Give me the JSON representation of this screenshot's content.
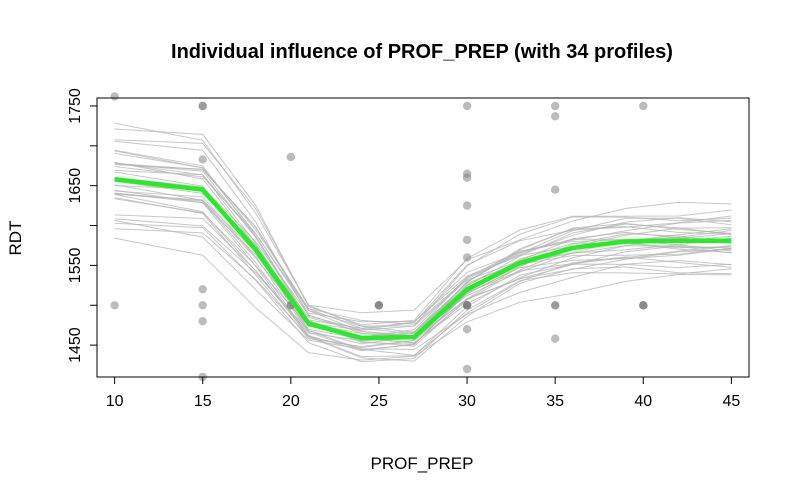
{
  "chart_data": {
    "type": "line",
    "title": "Individual influence of PROF_PREP (with 34 profiles)",
    "xlabel": "PROF_PREP",
    "ylabel": "RDT",
    "xlim": [
      9,
      46
    ],
    "ylim": [
      1410,
      1760
    ],
    "x_ticks": [
      10,
      15,
      20,
      25,
      30,
      35,
      40,
      45
    ],
    "y_ticks": [
      1450,
      1550,
      1650,
      1750
    ],
    "grid": false,
    "colors": {
      "mean_profile": "#22ee22",
      "individual_profiles": "#b4b4b4",
      "observations": "#7a7a7a"
    },
    "mean_profile": {
      "x": [
        10,
        15,
        18,
        21,
        24,
        27,
        30,
        33,
        36,
        39,
        42,
        45
      ],
      "y": [
        1658,
        1645,
        1570,
        1477,
        1459,
        1460,
        1520,
        1553,
        1572,
        1580,
        1581,
        1581
      ]
    },
    "observations": [
      {
        "x": 10,
        "y": 1762
      },
      {
        "x": 10,
        "y": 1500
      },
      {
        "x": 15,
        "y": 1750
      },
      {
        "x": 15,
        "y": 1750
      },
      {
        "x": 15,
        "y": 1683
      },
      {
        "x": 15,
        "y": 1520
      },
      {
        "x": 15,
        "y": 1500
      },
      {
        "x": 15,
        "y": 1480
      },
      {
        "x": 15,
        "y": 1410
      },
      {
        "x": 20,
        "y": 1686
      },
      {
        "x": 20,
        "y": 1500
      },
      {
        "x": 20,
        "y": 1500
      },
      {
        "x": 25,
        "y": 1500
      },
      {
        "x": 25,
        "y": 1500
      },
      {
        "x": 25,
        "y": 1500
      },
      {
        "x": 30,
        "y": 1750
      },
      {
        "x": 30,
        "y": 1665
      },
      {
        "x": 30,
        "y": 1660
      },
      {
        "x": 30,
        "y": 1625
      },
      {
        "x": 30,
        "y": 1582
      },
      {
        "x": 30,
        "y": 1560
      },
      {
        "x": 30,
        "y": 1500
      },
      {
        "x": 30,
        "y": 1500
      },
      {
        "x": 30,
        "y": 1500
      },
      {
        "x": 30,
        "y": 1500
      },
      {
        "x": 30,
        "y": 1470
      },
      {
        "x": 30,
        "y": 1420
      },
      {
        "x": 35,
        "y": 1750
      },
      {
        "x": 35,
        "y": 1737
      },
      {
        "x": 35,
        "y": 1645
      },
      {
        "x": 35,
        "y": 1500
      },
      {
        "x": 35,
        "y": 1500
      },
      {
        "x": 35,
        "y": 1458
      },
      {
        "x": 40,
        "y": 1750
      },
      {
        "x": 40,
        "y": 1500
      },
      {
        "x": 40,
        "y": 1500
      },
      {
        "x": 40,
        "y": 1500
      }
    ]
  }
}
